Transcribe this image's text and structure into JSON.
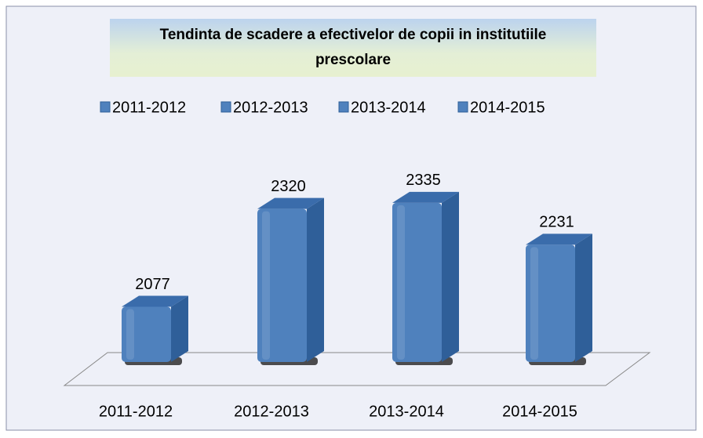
{
  "chart_data": {
    "type": "bar3d",
    "title": "Tendinta de scadere a efectivelor de copii in institutiile prescolare",
    "categories": [
      "2011-2012",
      "2012-2013",
      "2013-2014",
      "2014-2015"
    ],
    "values": [
      2077,
      2320,
      2335,
      2231
    ],
    "color": "#4f81bd",
    "ylim": [
      1940,
      2360
    ],
    "legend": "top"
  }
}
